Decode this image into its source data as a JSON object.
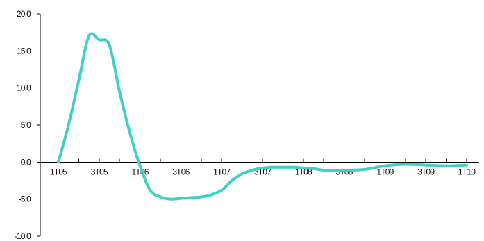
{
  "chart_data": {
    "type": "line",
    "title": "",
    "xlabel": "",
    "ylabel": "",
    "ylim": [
      -10,
      20
    ],
    "y_ticks": [
      20,
      15,
      10,
      5,
      0,
      -5,
      -10
    ],
    "y_tick_labels": [
      "20,0",
      "15,0",
      "10,0",
      "5,0",
      "0,0",
      "-5,0",
      "-10,0"
    ],
    "x_tick_labels": [
      "1T05",
      "3T05",
      "1T06",
      "3T06",
      "1T07",
      "3T07",
      "1T08",
      "3T08",
      "1T09",
      "3T09",
      "1T10"
    ],
    "grid": false,
    "legend": "none",
    "line_color": "#3ECFC8",
    "series": [
      {
        "x": [
          0,
          0.25,
          0.5,
          0.75,
          1,
          1.25,
          1.5,
          1.75,
          2,
          2.25,
          2.5,
          2.75,
          3,
          3.25,
          3.5,
          3.75,
          4,
          4.25,
          4.5,
          4.75,
          5,
          5.25,
          5.5,
          5.75,
          6,
          6.25,
          6.5,
          6.75,
          7,
          7.5,
          8,
          8.5,
          9,
          9.5,
          10
        ],
        "values": [
          0.0,
          5.0,
          11.0,
          17.0,
          16.5,
          15.8,
          9.5,
          4.0,
          -0.5,
          -3.8,
          -4.7,
          -5.0,
          -4.9,
          -4.8,
          -4.7,
          -4.4,
          -3.8,
          -2.5,
          -1.6,
          -1.1,
          -0.8,
          -0.7,
          -0.7,
          -0.7,
          -0.8,
          -0.9,
          -1.1,
          -1.2,
          -1.1,
          -1.0,
          -0.5,
          -0.3,
          -0.4,
          -0.5,
          -0.4
        ]
      }
    ]
  }
}
